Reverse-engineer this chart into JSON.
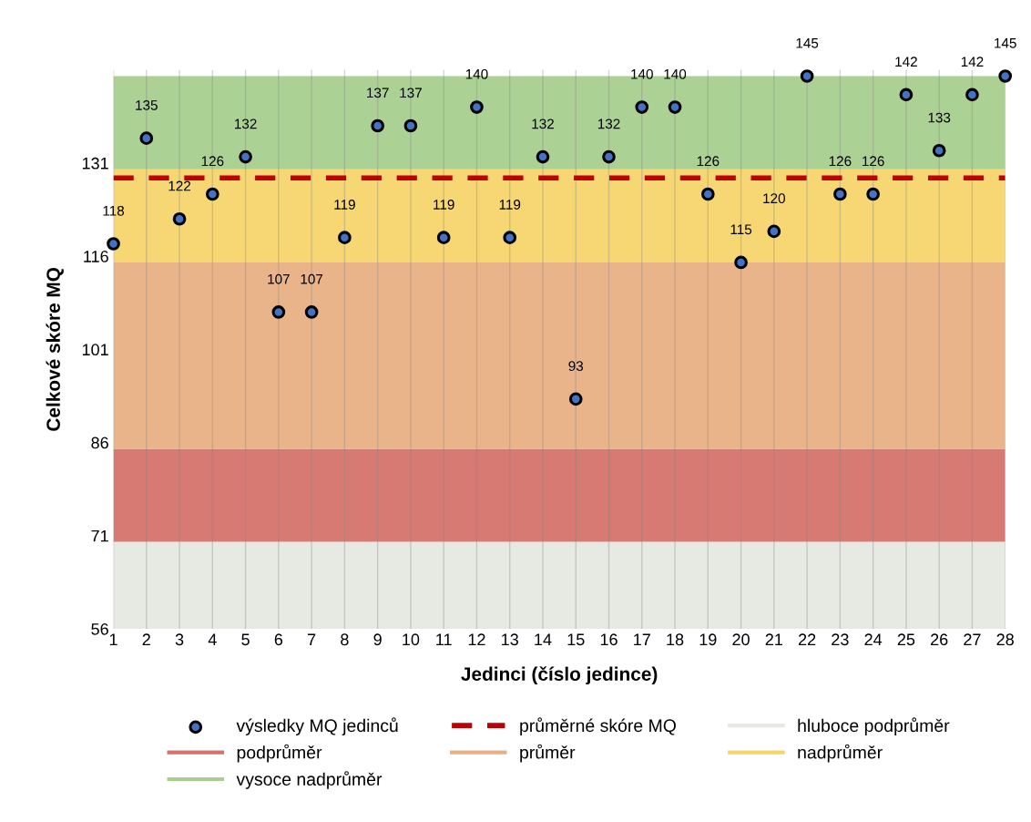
{
  "chart_data": {
    "type": "scatter",
    "xlabel": "Jedinci (číslo jedince)",
    "ylabel": "Celkové skóre MQ",
    "x": [
      1,
      2,
      3,
      4,
      5,
      6,
      7,
      8,
      9,
      10,
      11,
      12,
      13,
      14,
      15,
      16,
      17,
      18,
      19,
      20,
      21,
      22,
      23,
      24,
      25,
      26,
      27,
      28
    ],
    "series": [
      {
        "name": "výsledky MQ jedinců",
        "color": "#4472c4",
        "values": [
          118,
          135,
          122,
          126,
          132,
          107,
          107,
          119,
          137,
          137,
          119,
          140,
          119,
          132,
          93,
          132,
          140,
          140,
          126,
          115,
          120,
          145,
          126,
          126,
          142,
          133,
          142,
          145
        ]
      }
    ],
    "marker": "circle",
    "data_labels": true,
    "xlim": [
      1,
      28
    ],
    "xticks": [
      1,
      2,
      3,
      4,
      5,
      6,
      7,
      8,
      9,
      10,
      11,
      12,
      13,
      14,
      15,
      16,
      17,
      18,
      19,
      20,
      21,
      22,
      23,
      24,
      25,
      26,
      27,
      28
    ],
    "ylim": [
      56,
      146
    ],
    "yticks": [
      56,
      71,
      86,
      101,
      116,
      131
    ],
    "ref_lines": [
      {
        "axis": "y",
        "value": 128.6,
        "label": "průměrné skóre MQ",
        "color": "#c00000",
        "line_style": "dashed"
      }
    ],
    "bands": [
      {
        "axis": "y",
        "from": 56,
        "to": 70,
        "label": "hluboce podprůměr",
        "color": "#e6e8e1"
      },
      {
        "axis": "y",
        "from": 70,
        "to": 85,
        "label": "podprůměr",
        "color": "#d4736b"
      },
      {
        "axis": "y",
        "from": 85,
        "to": 115,
        "label": "průměr",
        "color": "#e9b085"
      },
      {
        "axis": "y",
        "from": 115,
        "to": 130,
        "label": "nadprůměr",
        "color": "#f5d56b"
      },
      {
        "axis": "y",
        "from": 130,
        "to": 145,
        "label": "vysoce nadprůměr",
        "color": "#a8cf8e"
      }
    ],
    "grid": "x",
    "legend": "bottom"
  }
}
